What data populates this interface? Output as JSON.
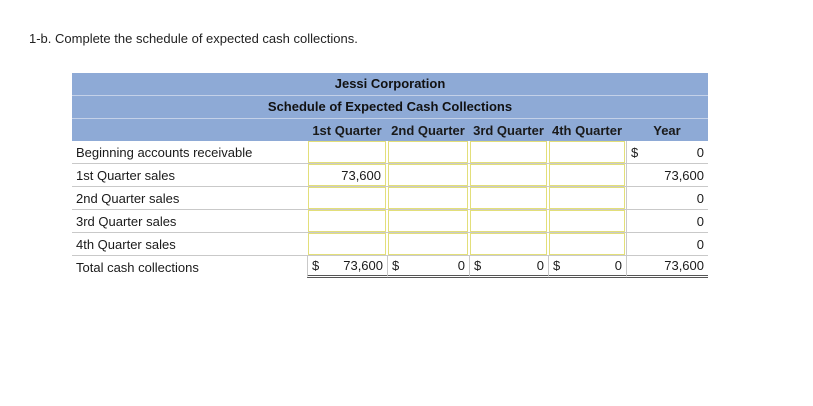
{
  "instruction": "1-b.  Complete the schedule of expected cash collections.",
  "schedule": {
    "company": "Jessi Corporation",
    "title": "Schedule of Expected Cash Collections",
    "columns": [
      "1st Quarter",
      "2nd Quarter",
      "3rd Quarter",
      "4th Quarter",
      "Year"
    ],
    "rows": [
      {
        "label": "Beginning accounts receivable",
        "q1": "",
        "q2": "",
        "q3": "",
        "q4": "",
        "year_prefix": "$",
        "year": "0"
      },
      {
        "label": "1st Quarter sales",
        "q1": "73,600",
        "q2": "",
        "q3": "",
        "q4": "",
        "year_prefix": "",
        "year": "73,600"
      },
      {
        "label": "2nd Quarter sales",
        "q1": "",
        "q2": "",
        "q3": "",
        "q4": "",
        "year_prefix": "",
        "year": "0"
      },
      {
        "label": "3rd Quarter sales",
        "q1": "",
        "q2": "",
        "q3": "",
        "q4": "",
        "year_prefix": "",
        "year": "0"
      },
      {
        "label": "4th Quarter sales",
        "q1": "",
        "q2": "",
        "q3": "",
        "q4": "",
        "year_prefix": "",
        "year": "0"
      }
    ],
    "total": {
      "label": "Total cash collections",
      "currency": "$",
      "q1": "73,600",
      "q2": "0",
      "q3": "0",
      "q4": "0",
      "year": "73,600"
    }
  }
}
